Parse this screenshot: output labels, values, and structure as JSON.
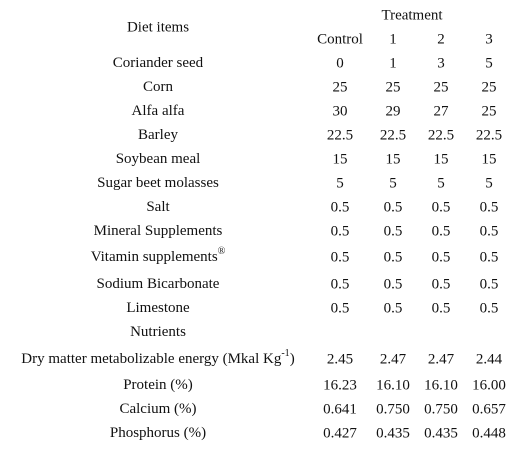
{
  "header": {
    "diet_items": "Diet items",
    "treatment": "Treatment",
    "columns": [
      "Control",
      "1",
      "2",
      "3"
    ]
  },
  "rows": [
    {
      "label": "Coriander seed",
      "values": [
        "0",
        "1",
        "3",
        "5"
      ]
    },
    {
      "label": "Corn",
      "values": [
        "25",
        "25",
        "25",
        "25"
      ]
    },
    {
      "label": "Alfa alfa",
      "values": [
        "30",
        "29",
        "27",
        "25"
      ]
    },
    {
      "label": "Barley",
      "values": [
        "22.5",
        "22.5",
        "22.5",
        "22.5"
      ]
    },
    {
      "label": "Soybean meal",
      "values": [
        "15",
        "15",
        "15",
        "15"
      ]
    },
    {
      "label": "Sugar beet molasses",
      "values": [
        "5",
        "5",
        "5",
        "5"
      ]
    },
    {
      "label": "Salt",
      "values": [
        "0.5",
        "0.5",
        "0.5",
        "0.5"
      ]
    },
    {
      "label": "Mineral Supplements",
      "values": [
        "0.5",
        "0.5",
        "0.5",
        "0.5"
      ]
    },
    {
      "label": "Vitamin supplements",
      "sup": "®",
      "values": [
        "0.5",
        "0.5",
        "0.5",
        "0.5"
      ]
    },
    {
      "label": "Sodium Bicarbonate",
      "values": [
        "0.5",
        "0.5",
        "0.5",
        "0.5"
      ]
    },
    {
      "label": "Limestone",
      "values": [
        "0.5",
        "0.5",
        "0.5",
        "0.5"
      ]
    },
    {
      "label": "Nutrients"
    },
    {
      "label": "Dry matter metabolizable energy (Mkal Kg",
      "sup": "-1",
      "label_end": ")",
      "values": [
        "2.45",
        "2.47",
        "2.47",
        "2.44"
      ]
    },
    {
      "label": "Protein (%)",
      "values": [
        "16.23",
        "16.10",
        "16.10",
        "16.00"
      ]
    },
    {
      "label": "Calcium (%)",
      "values": [
        "0.641",
        "0.750",
        "0.750",
        "0.657"
      ]
    },
    {
      "label": "Phosphorus (%)",
      "values": [
        "0.427",
        "0.435",
        "0.435",
        "0.448"
      ]
    }
  ]
}
